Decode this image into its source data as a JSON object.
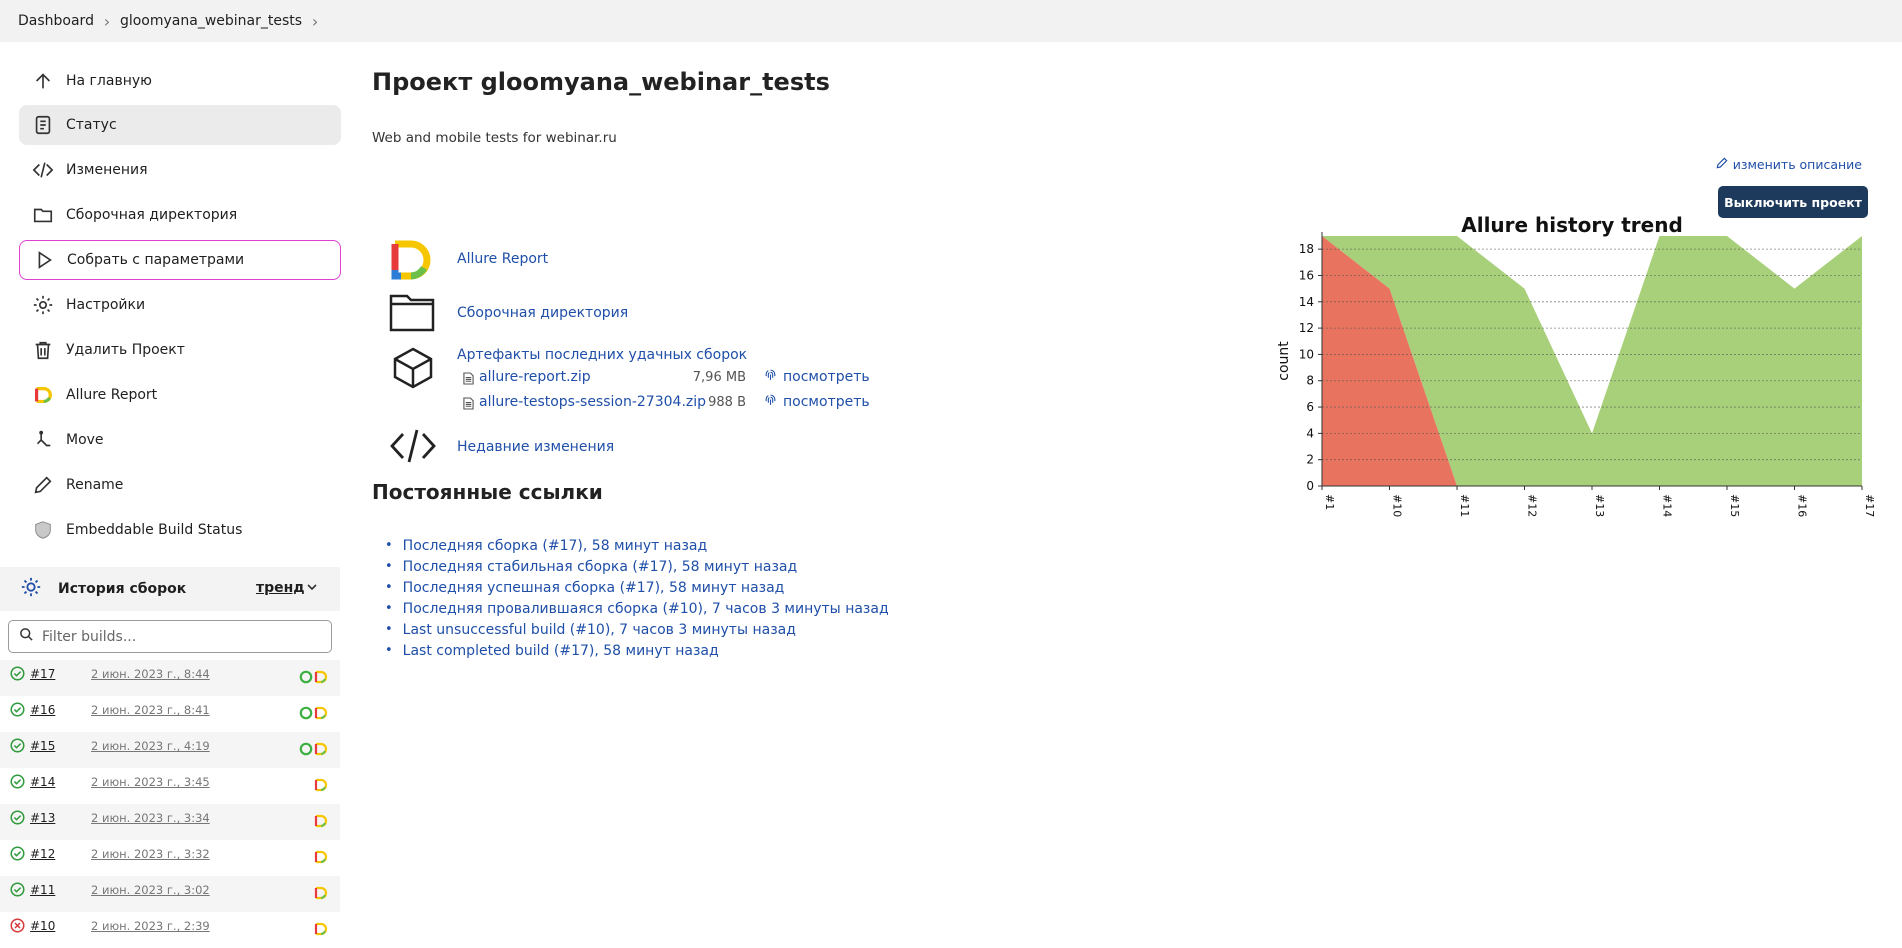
{
  "breadcrumb": {
    "items": [
      "Dashboard",
      "gloomyana_webinar_tests"
    ]
  },
  "sidebar": {
    "items": [
      {
        "label": "На главную",
        "icon": "arrow-up-icon"
      },
      {
        "label": "Статус",
        "icon": "document-icon",
        "active": true
      },
      {
        "label": "Изменения",
        "icon": "code-icon"
      },
      {
        "label": "Сборочная директория",
        "icon": "folder-icon"
      },
      {
        "label": "Собрать с параметрами",
        "icon": "play-icon",
        "highlighted": true
      },
      {
        "label": "Настройки",
        "icon": "gear-icon"
      },
      {
        "label": "Удалить Проект",
        "icon": "trash-icon"
      },
      {
        "label": "Allure Report",
        "icon": "allure-icon"
      },
      {
        "label": "Move",
        "icon": "move-icon"
      },
      {
        "label": "Rename",
        "icon": "pencil-icon"
      },
      {
        "label": "Embeddable Build Status",
        "icon": "shield-icon"
      }
    ]
  },
  "history": {
    "title": "История сборок",
    "trend_label": "тренд",
    "filter_placeholder": "Filter builds...",
    "builds": [
      {
        "num": "#17",
        "date": "2 июн. 2023 г., 8:44",
        "status": "success",
        "extra_ring": true
      },
      {
        "num": "#16",
        "date": "2 июн. 2023 г., 8:41",
        "status": "success",
        "extra_ring": true
      },
      {
        "num": "#15",
        "date": "2 июн. 2023 г., 4:19",
        "status": "success",
        "extra_ring": true
      },
      {
        "num": "#14",
        "date": "2 июн. 2023 г., 3:45",
        "status": "success",
        "extra_ring": false
      },
      {
        "num": "#13",
        "date": "2 июн. 2023 г., 3:34",
        "status": "success",
        "extra_ring": false
      },
      {
        "num": "#12",
        "date": "2 июн. 2023 г., 3:32",
        "status": "success",
        "extra_ring": false
      },
      {
        "num": "#11",
        "date": "2 июн. 2023 г., 3:02",
        "status": "success",
        "extra_ring": false
      },
      {
        "num": "#10",
        "date": "2 июн. 2023 г., 2:39",
        "status": "failed",
        "extra_ring": false
      }
    ]
  },
  "main": {
    "title": "Проект gloomyana_webinar_tests",
    "description": "Web and mobile tests for webinar.ru",
    "edit_description": "изменить описание",
    "disable_button": "Выключить проект",
    "links": {
      "allure": "Allure Report",
      "workspace": "Сборочная директория",
      "artifacts": "Артефакты последних удачных сборок",
      "changes": "Недавние изменения"
    },
    "artifacts": [
      {
        "name": "allure-report.zip",
        "size": "7,96 MB",
        "view": "посмотреть"
      },
      {
        "name": "allure-testops-session-27304.zip",
        "size": "988 B",
        "view": "посмотреть"
      }
    ],
    "permalinks_title": "Постоянные ссылки",
    "permalinks": [
      "Последняя сборка (#17), 58 минут назад",
      "Последняя стабильная сборка (#17), 58 минут назад",
      "Последняя успешная сборка (#17), 58 минут назад",
      "Последняя провалившаяся сборка (#10), 7 часов 3 минуты назад",
      "Last unsuccessful build (#10), 7 часов 3 минуты назад",
      "Last completed build (#17), 58 минут назад"
    ]
  },
  "colors": {
    "passed": "#a8d07a",
    "failed": "#e8735f",
    "accent": "#1d3a5c",
    "link": "#1f4fa8"
  },
  "chart_data": {
    "type": "area",
    "title": "Allure history trend",
    "ylabel": "count",
    "xlabel": "",
    "categories": [
      "#1",
      "#10",
      "#11",
      "#12",
      "#13",
      "#14",
      "#15",
      "#16",
      "#17"
    ],
    "series": [
      {
        "name": "failed",
        "values": [
          19,
          15,
          0,
          0,
          0,
          0,
          0,
          0,
          0
        ]
      },
      {
        "name": "passed",
        "values": [
          0,
          4,
          19,
          15,
          4,
          19,
          19,
          15,
          19
        ]
      }
    ],
    "ylim": [
      0,
      19
    ],
    "yticks": [
      0,
      2,
      4,
      6,
      8,
      10,
      12,
      14,
      16,
      18
    ],
    "grid": true
  }
}
